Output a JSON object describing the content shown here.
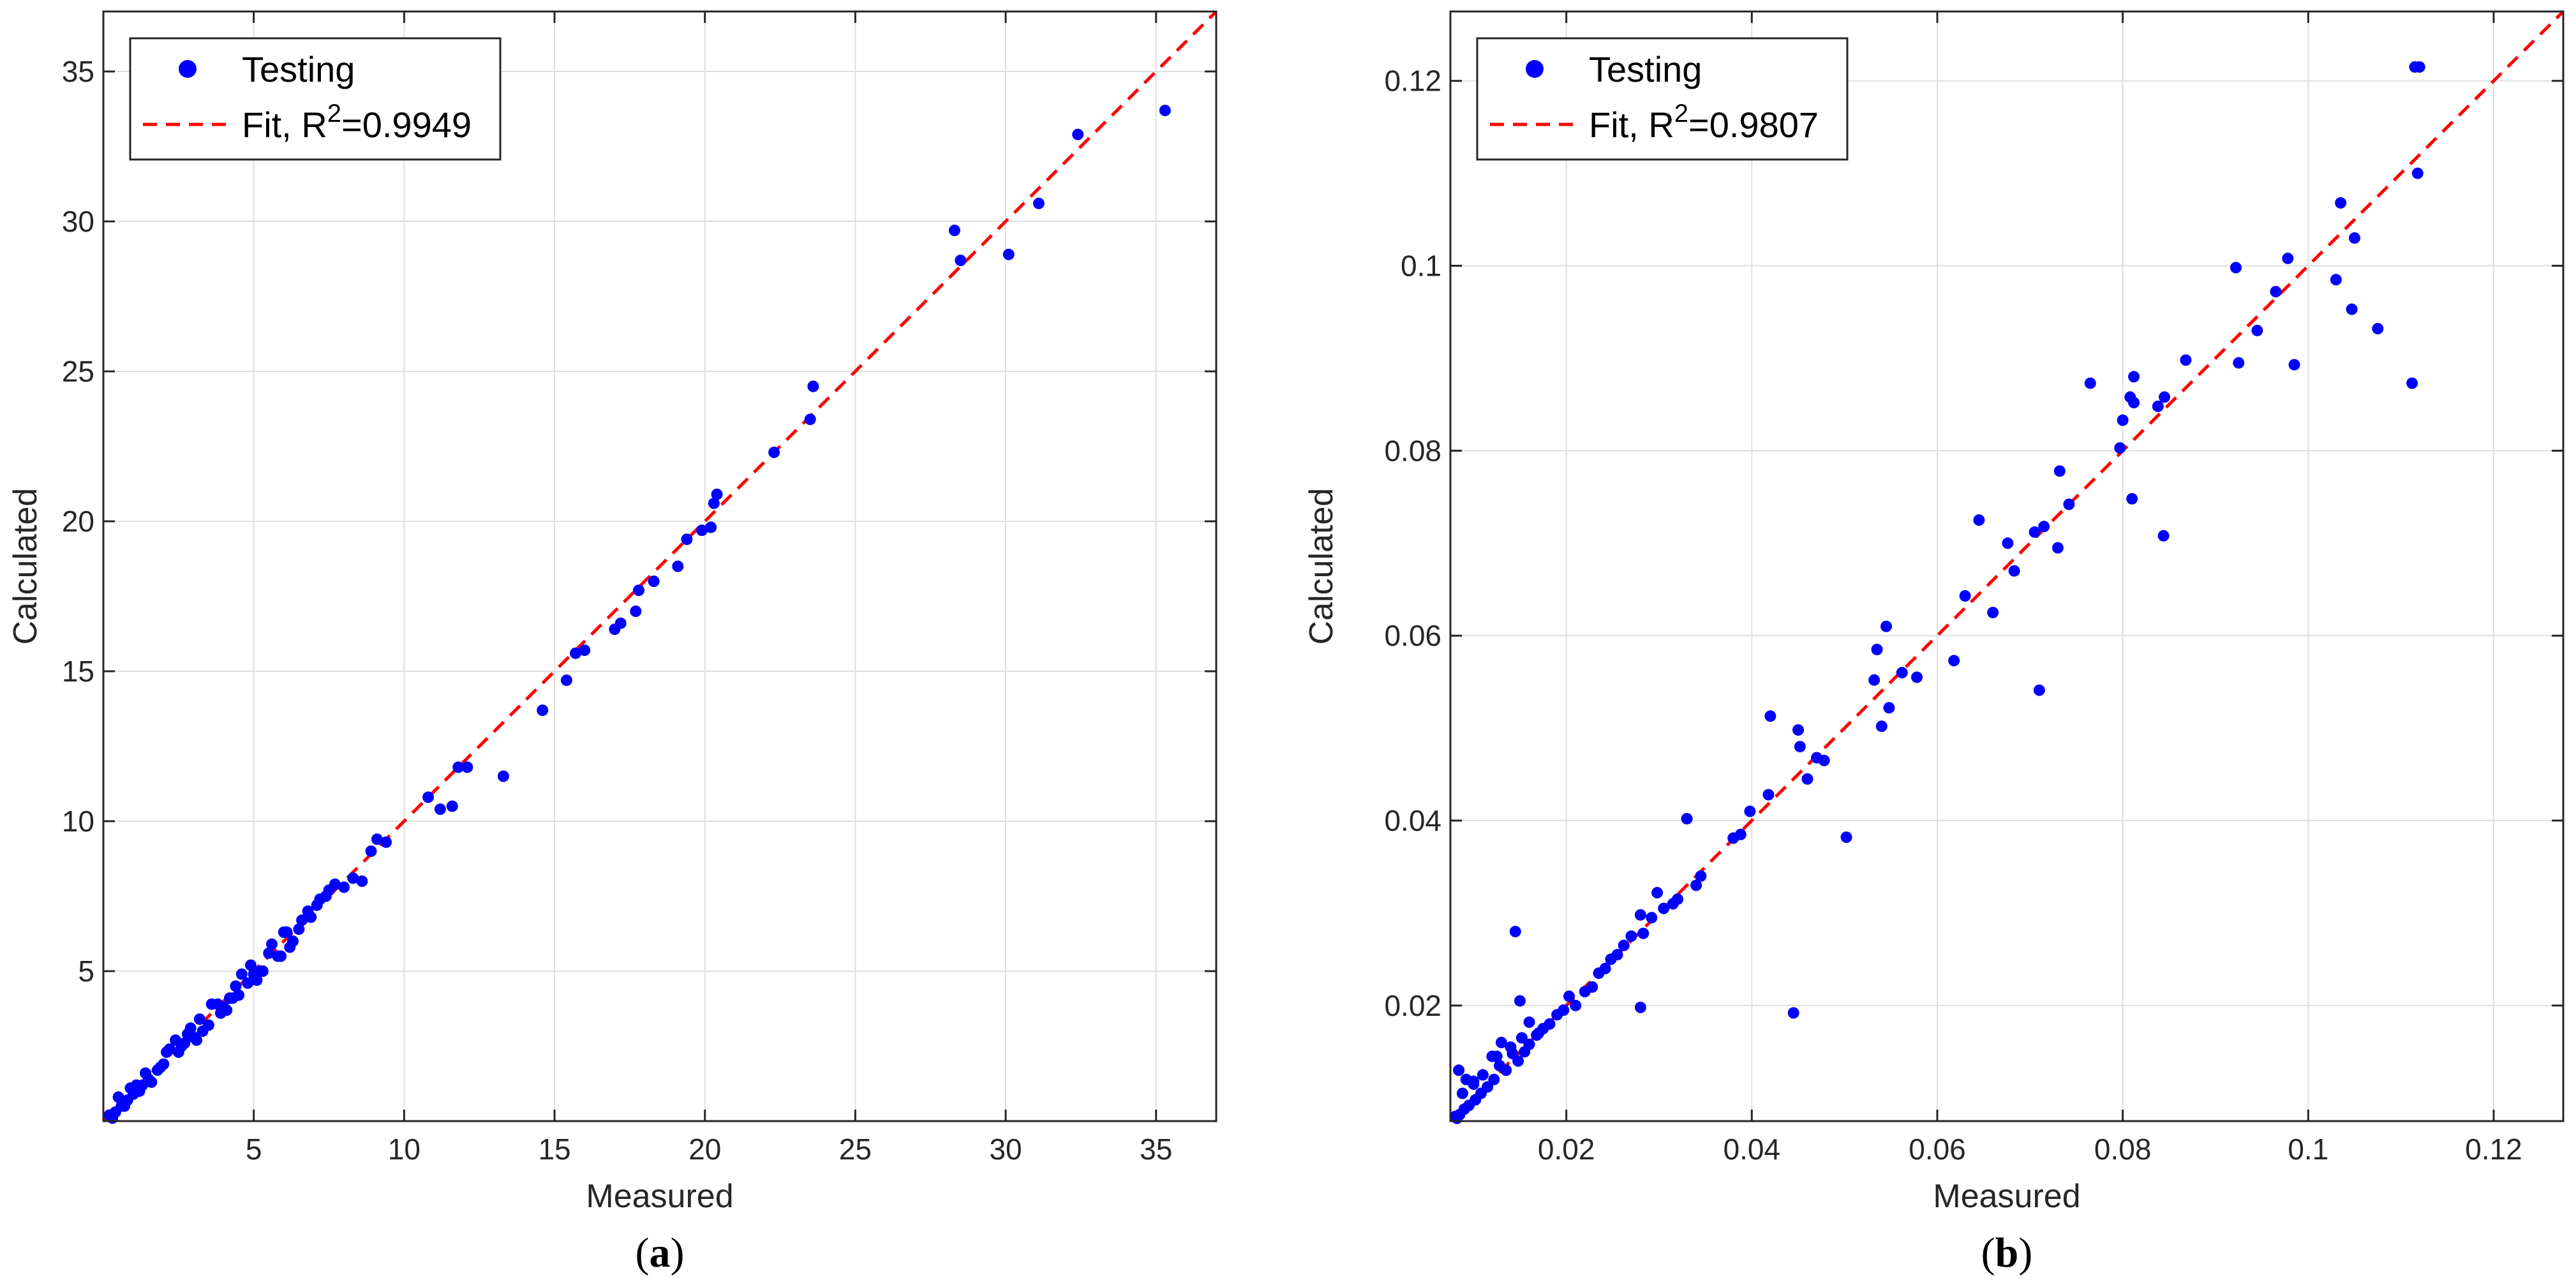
{
  "colors": {
    "points": "#0000ff",
    "fit": "#ff0000",
    "grid": "#dfdfdf",
    "axis": "#262626"
  },
  "chart_data": [
    {
      "type": "scatter",
      "panel_label_open": "(",
      "panel_label": "a",
      "panel_label_close": ")",
      "xlabel": "Measured",
      "ylabel": "Calculated",
      "xlim": [
        0,
        37
      ],
      "ylim": [
        0,
        37
      ],
      "xticks": [
        5,
        10,
        15,
        20,
        25,
        30,
        35
      ],
      "yticks": [
        5,
        10,
        15,
        20,
        25,
        30,
        35
      ],
      "tick_labels_x": [
        "5",
        "10",
        "15",
        "20",
        "25",
        "30",
        "35"
      ],
      "tick_labels_y": [
        "5",
        "10",
        "15",
        "20",
        "25",
        "30",
        "35"
      ],
      "grid": true,
      "legend_position": "top-left",
      "legend": {
        "points": "Testing",
        "fit_prefix": "Fit, R",
        "fit_sup": "2",
        "fit_suffix": "=0.9949"
      },
      "fit_line": [
        [
          0,
          0
        ],
        [
          37,
          37
        ]
      ],
      "series": [
        {
          "name": "Testing",
          "x": [
            35.3,
            32.4,
            31.1,
            30.1,
            28.5,
            28.3,
            23.6,
            23.5,
            22.3,
            20.4,
            20.3,
            20.2,
            19.9,
            19.4,
            19.1,
            18.3,
            17.8,
            17.7,
            17.2,
            17.0,
            16.0,
            15.7,
            15.4,
            14.6,
            13.3,
            12.1,
            11.8,
            11.6,
            11.2,
            10.8,
            9.4,
            9.1,
            8.9,
            8.6,
            8.3,
            8.0,
            7.7,
            7.4,
            7.1,
            6.9,
            6.6,
            6.3,
            6.1,
            5.8,
            5.5,
            5.2,
            5.0,
            4.8,
            4.5,
            4.2,
            4.0,
            3.8,
            3.5,
            3.2,
            3.0,
            2.8,
            2.5,
            2.2,
            2.0,
            1.8,
            1.5,
            1.3,
            1.0,
            0.8,
            0.6,
            0.4,
            0.2,
            6.8,
            6.2,
            5.6,
            5.1,
            4.6,
            4.1,
            3.6,
            3.1,
            2.6,
            2.1,
            1.6,
            1.1,
            0.7,
            0.3,
            7.2,
            5.9,
            4.4,
            3.3,
            2.4,
            1.4,
            0.5,
            6.5,
            5.3,
            4.9,
            3.9,
            2.9,
            1.9,
            0.9,
            7.5,
            6.0,
            4.3,
            2.7,
            1.2
          ],
          "y": [
            33.7,
            32.9,
            30.6,
            28.9,
            28.7,
            29.7,
            24.5,
            23.4,
            22.3,
            20.9,
            20.6,
            19.8,
            19.7,
            19.4,
            18.5,
            18.0,
            17.7,
            17.0,
            16.6,
            16.4,
            15.7,
            15.6,
            14.7,
            13.7,
            11.5,
            11.8,
            11.8,
            10.5,
            10.4,
            10.8,
            9.3,
            9.4,
            9.0,
            8.0,
            8.1,
            7.8,
            7.9,
            7.5,
            7.2,
            6.8,
            6.7,
            6.0,
            6.3,
            5.5,
            5.6,
            5.0,
            4.9,
            4.6,
            4.2,
            4.1,
            3.8,
            3.9,
            3.2,
            3.4,
            2.8,
            2.9,
            2.3,
            2.4,
            1.9,
            1.7,
            1.4,
            1.2,
            0.9,
            0.7,
            0.5,
            0.3,
            0.2,
            7.0,
            5.8,
            5.9,
            4.7,
            4.9,
            3.7,
            3.9,
            2.7,
            2.5,
            2.3,
            1.3,
            1.2,
            0.5,
            0.1,
            7.4,
            5.5,
            4.5,
            3.0,
            2.7,
            1.6,
            0.8,
            6.4,
            5.0,
            5.2,
            3.6,
            3.1,
            1.8,
            1.1,
            7.7,
            6.3,
            4.1,
            2.6,
            1.0
          ]
        }
      ]
    },
    {
      "type": "scatter",
      "panel_label_open": "(",
      "panel_label": "b",
      "panel_label_close": ")",
      "xlabel": "Measured",
      "ylabel": "Calculated",
      "xlim": [
        0.0075,
        0.1275
      ],
      "ylim": [
        0.0075,
        0.1275
      ],
      "xticks": [
        0.02,
        0.04,
        0.06,
        0.08,
        0.1,
        0.12
      ],
      "yticks": [
        0.02,
        0.04,
        0.06,
        0.08,
        0.1,
        0.12
      ],
      "tick_labels_x": [
        "0.02",
        "0.04",
        "0.06",
        "0.08",
        "0.1",
        "0.12"
      ],
      "tick_labels_y": [
        "0.02",
        "0.04",
        "0.06",
        "0.08",
        "0.1",
        "0.12"
      ],
      "grid": true,
      "legend_position": "top-left",
      "legend": {
        "points": "Testing",
        "fit_prefix": "Fit, R",
        "fit_sup": "2",
        "fit_suffix": "=0.9807"
      },
      "fit_line": [
        [
          0.0075,
          0.0075
        ],
        [
          0.1275,
          0.1275
        ]
      ],
      "series": [
        {
          "name": "Testing",
          "x": [
            0.1115,
            0.112,
            0.1118,
            0.1112,
            0.1035,
            0.105,
            0.103,
            0.1047,
            0.1075,
            0.0978,
            0.0965,
            0.0945,
            0.0985,
            0.0922,
            0.0925,
            0.0868,
            0.0845,
            0.0838,
            0.0812,
            0.0808,
            0.0812,
            0.08,
            0.0797,
            0.081,
            0.0844,
            0.0765,
            0.0742,
            0.0732,
            0.073,
            0.0715,
            0.0705,
            0.0676,
            0.0683,
            0.0645,
            0.063,
            0.066,
            0.071,
            0.0618,
            0.0578,
            0.0562,
            0.0548,
            0.0535,
            0.0532,
            0.054,
            0.0545,
            0.0502,
            0.0478,
            0.047,
            0.046,
            0.0452,
            0.045,
            0.042,
            0.0418,
            0.0398,
            0.0388,
            0.038,
            0.0345,
            0.034,
            0.033,
            0.032,
            0.0315,
            0.0305,
            0.0298,
            0.0292,
            0.028,
            0.0283,
            0.027,
            0.0262,
            0.0255,
            0.0248,
            0.0242,
            0.0235,
            0.0228,
            0.022,
            0.021,
            0.0203,
            0.0197,
            0.019,
            0.0182,
            0.0175,
            0.0168,
            0.016,
            0.0155,
            0.0152,
            0.0148,
            0.0142,
            0.0135,
            0.0128,
            0.0122,
            0.0115,
            0.0108,
            0.0102,
            0.0095,
            0.009,
            0.0085,
            0.0082,
            0.008,
            0.0445,
            0.028,
            0.017,
            0.016,
            0.015,
            0.014,
            0.013,
            0.012,
            0.011,
            0.01,
            0.0092,
            0.0088,
            0.0084,
            0.01,
            0.0125,
            0.0145
          ],
          "y": [
            0.1215,
            0.1215,
            0.11,
            0.0873,
            0.1068,
            0.103,
            0.0985,
            0.0953,
            0.0932,
            0.1008,
            0.0972,
            0.093,
            0.0893,
            0.0998,
            0.0895,
            0.0898,
            0.0858,
            0.0848,
            0.088,
            0.0858,
            0.0852,
            0.0833,
            0.0803,
            0.0748,
            0.0708,
            0.0873,
            0.0742,
            0.0778,
            0.0695,
            0.0718,
            0.0712,
            0.07,
            0.067,
            0.0725,
            0.0643,
            0.0625,
            0.0541,
            0.0573,
            0.0555,
            0.056,
            0.0522,
            0.0585,
            0.0552,
            0.0502,
            0.061,
            0.0382,
            0.0465,
            0.0468,
            0.0445,
            0.048,
            0.0498,
            0.0513,
            0.0428,
            0.041,
            0.0385,
            0.0381,
            0.034,
            0.033,
            0.0402,
            0.0315,
            0.031,
            0.0305,
            0.0322,
            0.0295,
            0.0298,
            0.0278,
            0.0275,
            0.0265,
            0.0255,
            0.025,
            0.024,
            0.0235,
            0.022,
            0.0215,
            0.02,
            0.021,
            0.0195,
            0.019,
            0.018,
            0.0175,
            0.0168,
            0.0158,
            0.015,
            0.0165,
            0.014,
            0.0148,
            0.013,
            0.0135,
            0.012,
            0.0112,
            0.0105,
            0.0098,
            0.0092,
            0.0088,
            0.0082,
            0.0078,
            0.008,
            0.0192,
            0.0198,
            0.017,
            0.0182,
            0.0205,
            0.0155,
            0.016,
            0.0145,
            0.0125,
            0.0115,
            0.012,
            0.0105,
            0.013,
            0.0118,
            0.0145,
            0.028
          ]
        }
      ]
    }
  ]
}
